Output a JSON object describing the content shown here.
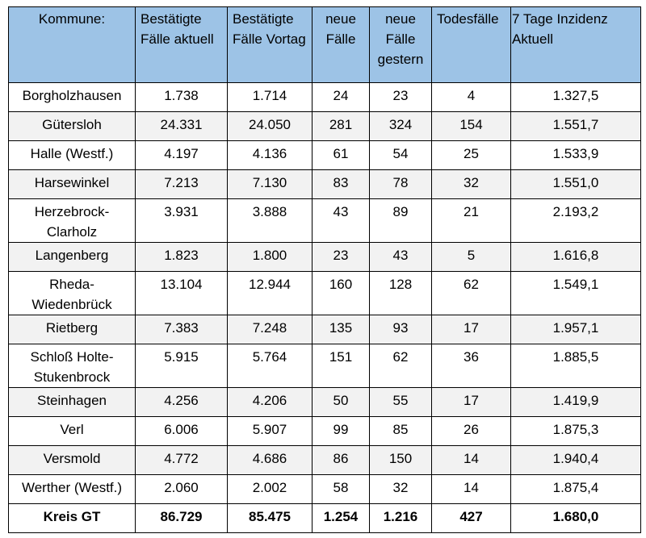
{
  "table": {
    "headers": [
      "Kommune:",
      "Bestätigte Fälle aktuell",
      "Bestätigte Fälle Vortag",
      "neue Fälle",
      "neue Fälle gestern",
      "Todesfälle",
      "7 Tage Inzidenz Aktuell"
    ],
    "rows": [
      [
        "Borgholzhausen",
        "1.738",
        "1.714",
        "24",
        "23",
        "4",
        "1.327,5"
      ],
      [
        "Gütersloh",
        "24.331",
        "24.050",
        "281",
        "324",
        "154",
        "1.551,7"
      ],
      [
        "Halle (Westf.)",
        "4.197",
        "4.136",
        "61",
        "54",
        "25",
        "1.533,9"
      ],
      [
        "Harsewinkel",
        "7.213",
        "7.130",
        "83",
        "78",
        "32",
        "1.551,0"
      ],
      [
        "Herzebrock-Clarholz",
        "3.931",
        "3.888",
        "43",
        "89",
        "21",
        "2.193,2"
      ],
      [
        "Langenberg",
        "1.823",
        "1.800",
        "23",
        "43",
        "5",
        "1.616,8"
      ],
      [
        "Rheda-Wiedenbrück",
        "13.104",
        "12.944",
        "160",
        "128",
        "62",
        "1.549,1"
      ],
      [
        "Rietberg",
        "7.383",
        "7.248",
        "135",
        "93",
        "17",
        "1.957,1"
      ],
      [
        "Schloß Holte-Stukenbrock",
        "5.915",
        "5.764",
        "151",
        "62",
        "36",
        "1.885,5"
      ],
      [
        "Steinhagen",
        "4.256",
        "4.206",
        "50",
        "55",
        "17",
        "1.419,9"
      ],
      [
        "Verl",
        "6.006",
        "5.907",
        "99",
        "85",
        "26",
        "1.875,3"
      ],
      [
        "Versmold",
        "4.772",
        "4.686",
        "86",
        "150",
        "14",
        "1.940,4"
      ],
      [
        "Werther (Westf.)",
        "2.060",
        "2.002",
        "58",
        "32",
        "14",
        "1.875,4"
      ]
    ],
    "total": [
      "Kreis GT",
      "86.729",
      "85.475",
      "1.254",
      "1.216",
      "427",
      "1.680,0"
    ]
  },
  "colors": {
    "header_bg": "#9dc3e6",
    "alt_row_bg": "#f2f2f2",
    "border": "#000000"
  }
}
